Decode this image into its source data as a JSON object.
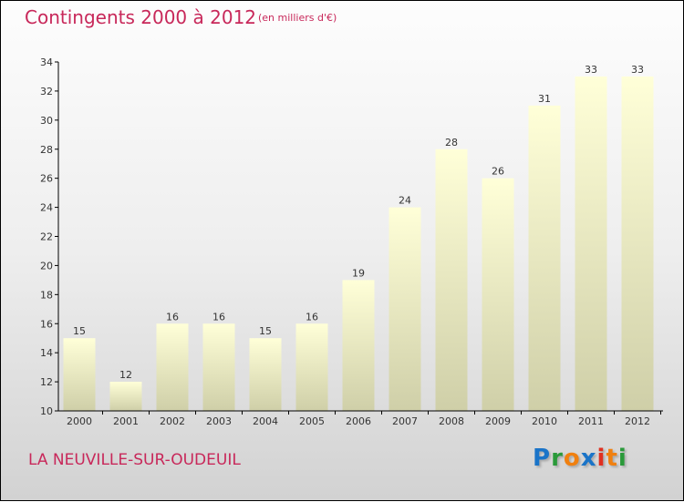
{
  "chart_data": {
    "type": "bar",
    "title": "Contingents 2000 à 2012",
    "subtitle": "(en milliers d'€)",
    "categories": [
      "2000",
      "2001",
      "2002",
      "2003",
      "2004",
      "2005",
      "2006",
      "2007",
      "2008",
      "2009",
      "2010",
      "2011",
      "2012"
    ],
    "values": [
      15,
      12,
      16,
      16,
      15,
      16,
      19,
      24,
      28,
      26,
      31,
      33,
      33
    ],
    "ylim": [
      10,
      34
    ],
    "yticks": [
      10,
      12,
      14,
      16,
      18,
      20,
      22,
      24,
      26,
      28,
      30,
      32,
      34
    ],
    "xlabel": "",
    "ylabel": "",
    "grid": false
  },
  "footer": {
    "commune": "LA NEUVILLE-SUR-OUDEUIL",
    "logo": "Proxiti"
  },
  "colors": {
    "title": "#c8285a",
    "bar_top": "#ffffd8",
    "bar_bottom": "#cfcfa8"
  }
}
